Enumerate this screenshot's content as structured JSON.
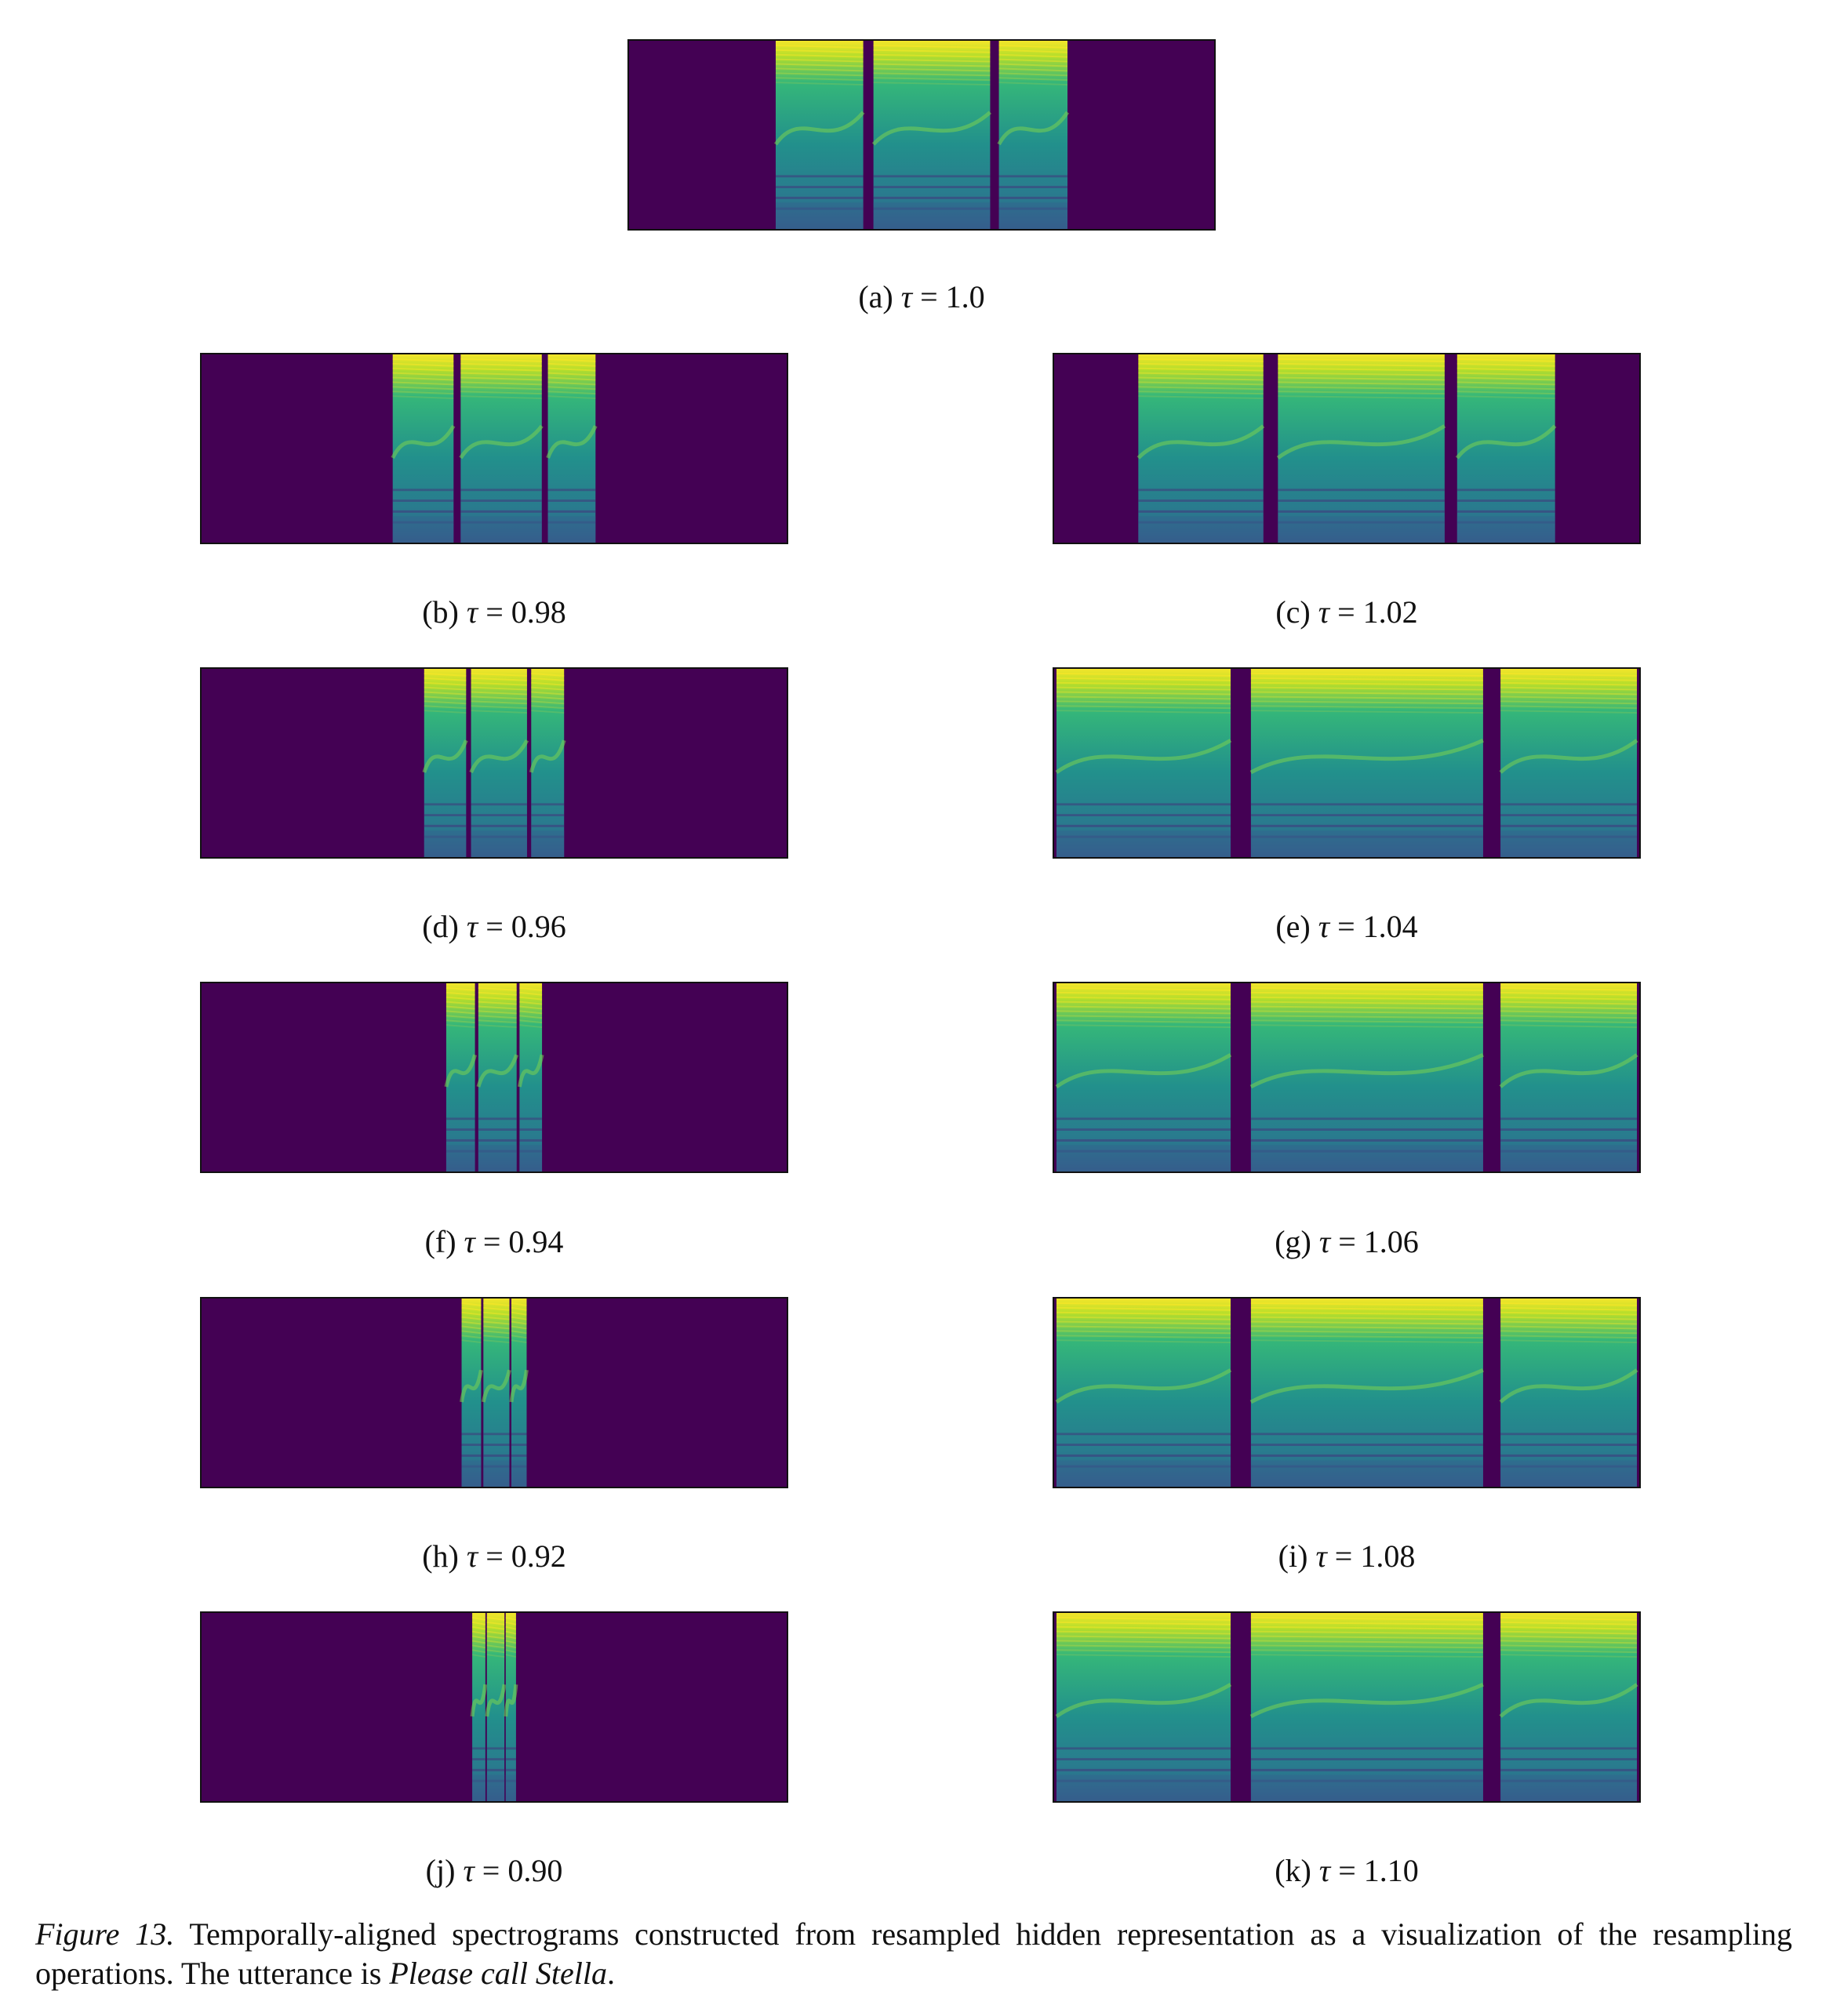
{
  "panels": [
    {
      "id": "a",
      "label": "(a)",
      "symbol": "τ",
      "equals": "=",
      "value": "1.0"
    },
    {
      "id": "b",
      "label": "(b)",
      "symbol": "τ",
      "equals": "=",
      "value": "0.98"
    },
    {
      "id": "c",
      "label": "(c)",
      "symbol": "τ",
      "equals": "=",
      "value": "1.02"
    },
    {
      "id": "d",
      "label": "(d)",
      "symbol": "τ",
      "equals": "=",
      "value": "0.96"
    },
    {
      "id": "e",
      "label": "(e)",
      "symbol": "τ",
      "equals": "=",
      "value": "1.04"
    },
    {
      "id": "f",
      "label": "(f)",
      "symbol": "τ",
      "equals": "=",
      "value": "0.94"
    },
    {
      "id": "g",
      "label": "(g)",
      "symbol": "τ",
      "equals": "=",
      "value": "1.06"
    },
    {
      "id": "h",
      "label": "(h)",
      "symbol": "τ",
      "equals": "=",
      "value": "0.92"
    },
    {
      "id": "i",
      "label": "(i)",
      "symbol": "τ",
      "equals": "=",
      "value": "1.08"
    },
    {
      "id": "j",
      "label": "(j)",
      "symbol": "τ",
      "equals": "=",
      "value": "0.90"
    },
    {
      "id": "k",
      "label": "(k)",
      "symbol": "τ",
      "equals": "=",
      "value": "1.10"
    }
  ],
  "caption": {
    "figure_label": "Figure 13.",
    "text": " Temporally-aligned spectrograms constructed from resampled hidden representation as a visualization of the resampling operations. The utterance is ",
    "utterance": "Please call Stella",
    "end": "."
  },
  "colors": {
    "background": "#440154",
    "viridis": [
      "#440154",
      "#3b528b",
      "#21918c",
      "#5ec962",
      "#fde725"
    ]
  }
}
